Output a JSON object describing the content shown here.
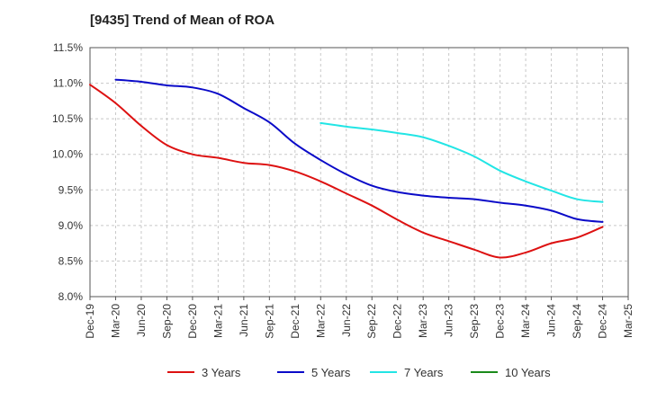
{
  "chart_data": {
    "type": "line",
    "title": "[9435]  Trend of Mean of ROA",
    "xlabel": "",
    "ylabel": "",
    "ylim": [
      8.0,
      11.5
    ],
    "ytick_values": [
      8.0,
      8.5,
      9.0,
      9.5,
      10.0,
      10.5,
      11.0,
      11.5
    ],
    "ytick_labels": [
      "8.0%",
      "8.5%",
      "9.0%",
      "9.5%",
      "10.0%",
      "10.5%",
      "11.0%",
      "11.5%"
    ],
    "categories": [
      "Dec-19",
      "Mar-20",
      "Jun-20",
      "Sep-20",
      "Dec-20",
      "Mar-21",
      "Jun-21",
      "Sep-21",
      "Dec-21",
      "Mar-22",
      "Jun-22",
      "Sep-22",
      "Dec-22",
      "Mar-23",
      "Jun-23",
      "Sep-23",
      "Dec-23",
      "Mar-24",
      "Jun-24",
      "Sep-24",
      "Dec-24",
      "Mar-25"
    ],
    "grid": true,
    "legend_position": "bottom",
    "series": [
      {
        "name": "3 Years",
        "color": "#dd1111",
        "x": [
          0,
          1,
          2,
          3,
          4,
          5,
          6,
          7,
          8,
          9,
          10,
          11,
          12,
          13,
          14,
          15,
          16,
          17,
          18,
          19,
          20
        ],
        "values": [
          10.98,
          10.72,
          10.4,
          10.13,
          10.0,
          9.95,
          9.88,
          9.85,
          9.76,
          9.62,
          9.45,
          9.28,
          9.08,
          8.9,
          8.78,
          8.66,
          8.55,
          8.62,
          8.75,
          8.83,
          8.98
        ]
      },
      {
        "name": "5 Years",
        "color": "#0a0ac8",
        "x": [
          1,
          2,
          3,
          4,
          5,
          6,
          7,
          8,
          9,
          10,
          11,
          12,
          13,
          14,
          15,
          16,
          17,
          18,
          19,
          20
        ],
        "values": [
          11.05,
          11.02,
          10.97,
          10.94,
          10.85,
          10.65,
          10.45,
          10.15,
          9.92,
          9.72,
          9.56,
          9.47,
          9.42,
          9.39,
          9.37,
          9.32,
          9.28,
          9.21,
          9.09,
          9.05
        ]
      },
      {
        "name": "7 Years",
        "color": "#22e5e5",
        "x": [
          9,
          10,
          11,
          12,
          13,
          14,
          15,
          16,
          17,
          18,
          19,
          20
        ],
        "values": [
          10.44,
          10.39,
          10.35,
          10.3,
          10.24,
          10.12,
          9.97,
          9.77,
          9.62,
          9.49,
          9.37,
          9.33
        ]
      },
      {
        "name": "10 Years",
        "color": "#1a8a1a",
        "x": [],
        "values": []
      }
    ]
  }
}
